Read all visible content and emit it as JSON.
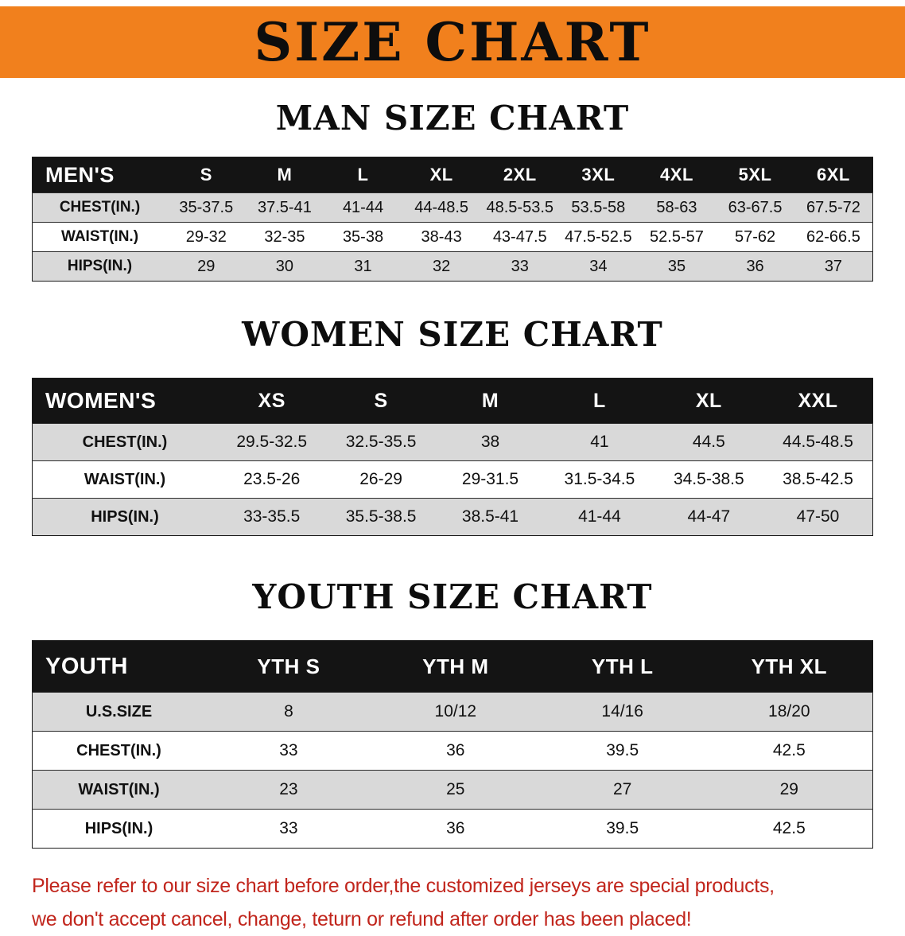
{
  "banner": {
    "title": "SIZE CHART",
    "bg_color": "#F1801D",
    "text_color": "#0d0d0d"
  },
  "sections": [
    {
      "id": "men",
      "title": "MAN SIZE CHART",
      "corner_label": "MEN'S",
      "columns": [
        "S",
        "M",
        "L",
        "XL",
        "2XL",
        "3XL",
        "4XL",
        "5XL",
        "6XL"
      ],
      "rows": [
        {
          "label": "CHEST(IN.)",
          "values": [
            "35-37.5",
            "37.5-41",
            "41-44",
            "44-48.5",
            "48.5-53.5",
            "53.5-58",
            "58-63",
            "63-67.5",
            "67.5-72"
          ]
        },
        {
          "label": "WAIST(IN.)",
          "values": [
            "29-32",
            "32-35",
            "35-38",
            "38-43",
            "43-47.5",
            "47.5-52.5",
            "52.5-57",
            "57-62",
            "62-66.5"
          ]
        },
        {
          "label": "HIPS(IN.)",
          "values": [
            "29",
            "30",
            "31",
            "32",
            "33",
            "34",
            "35",
            "36",
            "37"
          ]
        }
      ]
    },
    {
      "id": "women",
      "title": "WOMEN SIZE CHART",
      "corner_label": "WOMEN'S",
      "columns": [
        "XS",
        "S",
        "M",
        "L",
        "XL",
        "XXL"
      ],
      "rows": [
        {
          "label": "CHEST(IN.)",
          "values": [
            "29.5-32.5",
            "32.5-35.5",
            "38",
            "41",
            "44.5",
            "44.5-48.5"
          ]
        },
        {
          "label": "WAIST(IN.)",
          "values": [
            "23.5-26",
            "26-29",
            "29-31.5",
            "31.5-34.5",
            "34.5-38.5",
            "38.5-42.5"
          ]
        },
        {
          "label": "HIPS(IN.)",
          "values": [
            "33-35.5",
            "35.5-38.5",
            "38.5-41",
            "41-44",
            "44-47",
            "47-50"
          ]
        }
      ]
    },
    {
      "id": "youth",
      "title": "YOUTH SIZE CHART",
      "corner_label": "YOUTH",
      "columns": [
        "YTH S",
        "YTH M",
        "YTH L",
        "YTH XL"
      ],
      "rows": [
        {
          "label": "U.S.SIZE",
          "values": [
            "8",
            "10/12",
            "14/16",
            "18/20"
          ]
        },
        {
          "label": "CHEST(IN.)",
          "values": [
            "33",
            "36",
            "39.5",
            "42.5"
          ]
        },
        {
          "label": "WAIST(IN.)",
          "values": [
            "23",
            "25",
            "27",
            "29"
          ]
        },
        {
          "label": "HIPS(IN.)",
          "values": [
            "33",
            "36",
            "39.5",
            "42.5"
          ]
        }
      ]
    }
  ],
  "footer": {
    "lines": [
      "Please refer to our size chart before order,the customized jerseys are special products,",
      "we don't accept cancel, change, teturn or refund after order has been placed!"
    ],
    "text_color": "#C1251C"
  },
  "colors": {
    "row_shaded": "#D9D9D9",
    "header_bg": "#141414",
    "header_text": "#FFFFFF"
  }
}
